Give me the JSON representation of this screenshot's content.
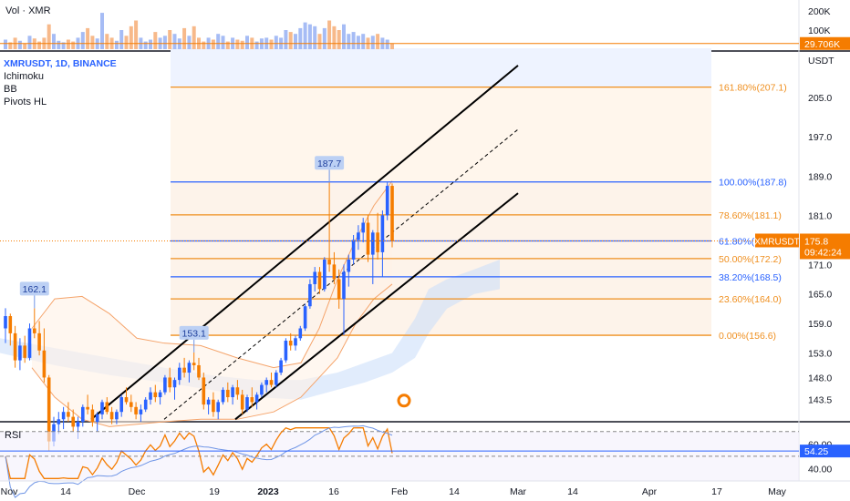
{
  "chart_data": {
    "type": "candlestick",
    "volume_pane": {
      "label": "Vol · XMR",
      "axis_ticks": [
        {
          "value": 200000,
          "label": "200K"
        },
        {
          "value": 100000,
          "label": "100K"
        }
      ],
      "last_value_label": "29.706K",
      "last_value": 29706
    },
    "main_pane": {
      "symbol_label": "XMRUSDT, 1D, BINANCE",
      "indicator_labels": [
        "Ichimoku",
        "BB",
        "Pivots HL"
      ],
      "axis_unit": "USDT",
      "ylim": [
        139,
        215
      ],
      "y_ticks": [
        205.0,
        197.0,
        189.0,
        181.0,
        171.0,
        165.0,
        159.0,
        153.0,
        148.0,
        143.5
      ],
      "last_price": 175.8,
      "last_price_label": "175.8",
      "symbol_tag": "XMRUSDT",
      "countdown": "09:42:24",
      "pivot_labels": [
        {
          "text": "162.1",
          "price": 162.1
        },
        {
          "text": "153.1",
          "price": 153.1
        },
        {
          "text": "187.7",
          "price": 187.7
        }
      ],
      "fib_levels": [
        {
          "label": "161.80%(207.1)",
          "price": 207.1,
          "color": "#ef8f1f"
        },
        {
          "label": "100.00%(187.8)",
          "price": 187.8,
          "color": "#2962ff"
        },
        {
          "label": "78.60%(181.1)",
          "price": 181.1,
          "color": "#ef8f1f"
        },
        {
          "label": "61.80%(1",
          "price": 175.8,
          "color": "#2962ff"
        },
        {
          "label": "50.00%(172.2)",
          "price": 172.2,
          "color": "#ef8f1f"
        },
        {
          "label": "38.20%(168.5)",
          "price": 168.5,
          "color": "#2962ff"
        },
        {
          "label": "23.60%(164.0)",
          "price": 164.0,
          "color": "#ef8f1f"
        },
        {
          "label": "0.00%(156.6)",
          "price": 156.6,
          "color": "#ef8f1f"
        }
      ],
      "candles_ohlc": [
        [
          158.0,
          162.1,
          155.0,
          160.5
        ],
        [
          160.5,
          161.0,
          154.5,
          157.0
        ],
        [
          157.0,
          158.5,
          150.0,
          151.5
        ],
        [
          151.5,
          156.0,
          149.5,
          154.5
        ],
        [
          154.5,
          156.5,
          151.0,
          152.0
        ],
        [
          152.0,
          159.0,
          151.5,
          158.0
        ],
        [
          158.0,
          162.1,
          156.0,
          157.0
        ],
        [
          157.0,
          159.5,
          152.5,
          153.5
        ],
        [
          153.5,
          158.0,
          147.0,
          148.0
        ],
        [
          148.0,
          148.5,
          133.0,
          135.0
        ],
        [
          135.0,
          140.0,
          134.0,
          138.5
        ],
        [
          138.5,
          141.0,
          136.5,
          139.5
        ],
        [
          139.5,
          142.0,
          137.5,
          141.0
        ],
        [
          141.0,
          143.0,
          139.0,
          140.0
        ],
        [
          140.0,
          141.5,
          137.0,
          138.0
        ],
        [
          138.0,
          140.0,
          135.5,
          139.0
        ],
        [
          139.0,
          142.5,
          138.0,
          142.0
        ],
        [
          142.0,
          144.5,
          140.5,
          141.5
        ],
        [
          141.5,
          142.5,
          138.0,
          139.0
        ],
        [
          139.0,
          141.0,
          137.0,
          140.5
        ],
        [
          140.5,
          143.5,
          139.5,
          143.0
        ],
        [
          143.0,
          144.0,
          140.5,
          141.0
        ],
        [
          141.0,
          142.0,
          138.5,
          139.5
        ],
        [
          139.5,
          141.5,
          138.5,
          141.0
        ],
        [
          141.0,
          144.5,
          140.0,
          144.0
        ],
        [
          144.0,
          146.0,
          142.5,
          143.0
        ],
        [
          143.0,
          144.5,
          141.0,
          142.0
        ],
        [
          142.0,
          143.0,
          139.5,
          140.5
        ],
        [
          140.5,
          142.5,
          139.0,
          141.5
        ],
        [
          141.5,
          144.0,
          141.0,
          143.5
        ],
        [
          143.5,
          146.0,
          142.5,
          145.0
        ],
        [
          145.0,
          146.5,
          143.0,
          144.0
        ],
        [
          144.0,
          145.5,
          142.5,
          145.0
        ],
        [
          145.0,
          148.5,
          144.5,
          148.0
        ],
        [
          148.0,
          150.0,
          145.0,
          146.0
        ],
        [
          146.0,
          148.0,
          143.5,
          147.5
        ],
        [
          147.5,
          151.0,
          146.5,
          150.0
        ],
        [
          150.0,
          152.0,
          148.0,
          149.0
        ],
        [
          149.0,
          151.5,
          147.0,
          151.0
        ],
        [
          151.0,
          153.1,
          149.5,
          150.5
        ],
        [
          150.5,
          152.0,
          147.5,
          148.0
        ],
        [
          148.0,
          149.0,
          141.5,
          142.5
        ],
        [
          142.5,
          144.0,
          140.5,
          143.5
        ],
        [
          143.5,
          145.0,
          140.0,
          141.0
        ],
        [
          141.0,
          143.5,
          139.5,
          143.0
        ],
        [
          143.0,
          146.0,
          142.5,
          145.5
        ],
        [
          145.5,
          147.0,
          143.0,
          144.0
        ],
        [
          144.0,
          146.5,
          142.5,
          146.0
        ],
        [
          146.0,
          147.5,
          143.5,
          144.5
        ],
        [
          144.5,
          145.5,
          140.5,
          141.5
        ],
        [
          141.5,
          144.5,
          141.0,
          144.0
        ],
        [
          144.0,
          146.0,
          142.0,
          143.0
        ],
        [
          143.0,
          145.0,
          141.5,
          144.5
        ],
        [
          144.5,
          147.0,
          144.0,
          146.5
        ],
        [
          146.5,
          148.0,
          145.0,
          147.5
        ],
        [
          147.5,
          149.0,
          146.0,
          146.5
        ],
        [
          146.5,
          149.5,
          146.0,
          149.0
        ],
        [
          149.0,
          152.0,
          148.5,
          151.5
        ],
        [
          151.5,
          156.0,
          151.0,
          155.5
        ],
        [
          155.5,
          157.0,
          153.5,
          154.5
        ],
        [
          154.5,
          156.5,
          153.5,
          156.0
        ],
        [
          156.0,
          158.5,
          155.5,
          158.0
        ],
        [
          158.0,
          163.0,
          157.5,
          162.5
        ],
        [
          162.5,
          168.0,
          162.0,
          167.0
        ],
        [
          167.0,
          170.5,
          165.5,
          169.5
        ],
        [
          169.5,
          170.5,
          165.0,
          166.0
        ],
        [
          166.0,
          172.5,
          165.5,
          172.0
        ],
        [
          172.0,
          187.7,
          169.5,
          171.0
        ],
        [
          171.0,
          173.5,
          167.0,
          168.0
        ],
        [
          168.0,
          170.0,
          162.0,
          164.0
        ],
        [
          164.0,
          171.0,
          156.6,
          169.5
        ],
        [
          169.5,
          173.0,
          166.5,
          172.0
        ],
        [
          172.0,
          177.0,
          171.0,
          176.0
        ],
        [
          176.0,
          179.0,
          174.0,
          177.5
        ],
        [
          177.5,
          180.5,
          175.5,
          179.5
        ],
        [
          179.5,
          181.0,
          171.5,
          173.0
        ],
        [
          173.0,
          178.0,
          167.0,
          177.5
        ],
        [
          177.5,
          181.5,
          172.0,
          173.5
        ],
        [
          173.5,
          182.0,
          168.5,
          181.0
        ],
        [
          181.0,
          187.7,
          180.0,
          187.0
        ],
        [
          187.0,
          187.5,
          174.5,
          175.8
        ]
      ],
      "x_ticks": [
        "Nov",
        "14",
        "Dec",
        "19",
        "2023",
        "16",
        "Feb",
        "14",
        "Mar",
        "14",
        "Apr",
        "17",
        "May"
      ]
    },
    "rsi_pane": {
      "label": "RSI",
      "axis_ticks": [
        {
          "value": 60,
          "label": "60.00"
        },
        {
          "value": 40,
          "label": "40.00"
        }
      ],
      "last_value": 54.25,
      "last_value_label": "54.25"
    }
  }
}
